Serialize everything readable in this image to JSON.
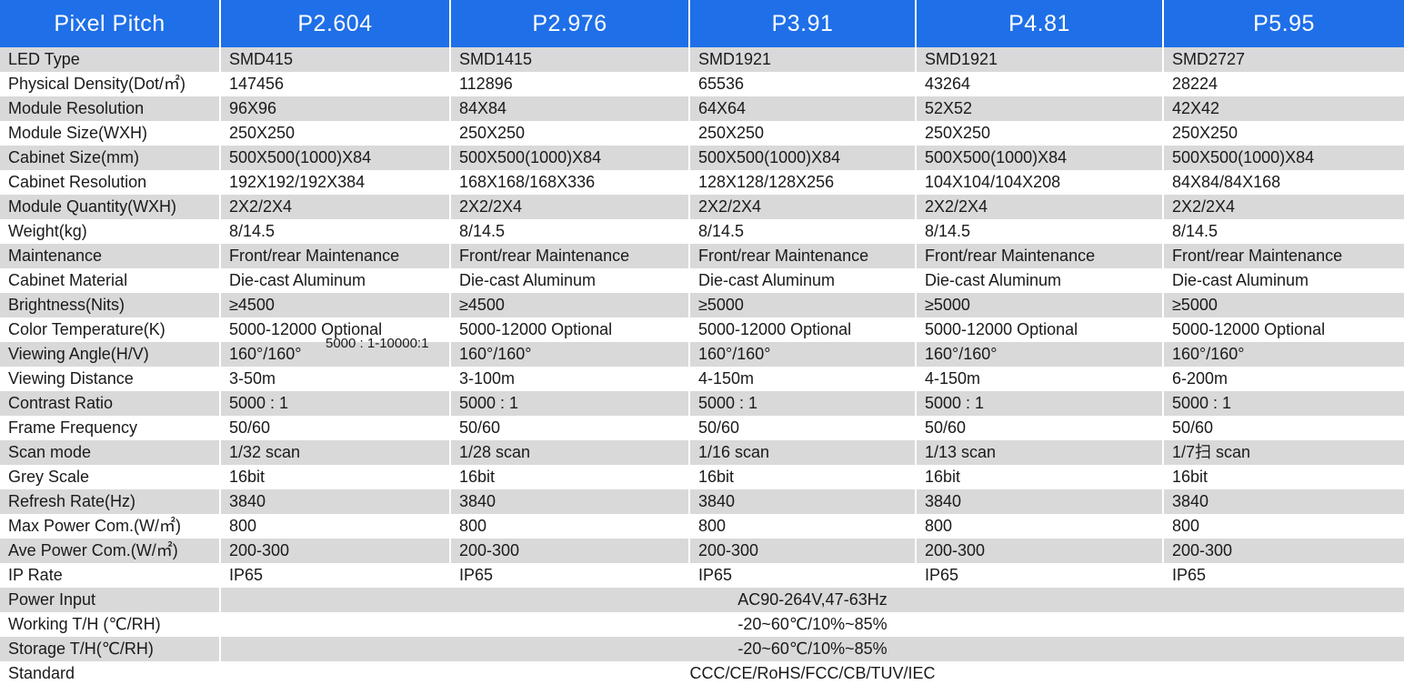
{
  "header": {
    "label": "Pixel Pitch",
    "models": [
      "P2.604",
      "P2.976",
      "P3.91",
      "P4.81",
      "P5.95"
    ]
  },
  "rows": [
    {
      "label": "LED Type",
      "values": [
        "SMD415",
        "SMD1415",
        "SMD1921",
        "SMD1921",
        "SMD2727"
      ]
    },
    {
      "label": "Physical Density(Dot/㎡)",
      "values": [
        "147456",
        "112896",
        "65536",
        "43264",
        "28224"
      ]
    },
    {
      "label": "Module Resolution",
      "values": [
        "96X96",
        "84X84",
        "64X64",
        "52X52",
        "42X42"
      ]
    },
    {
      "label": "Module Size(WXH)",
      "values": [
        "250X250",
        "250X250",
        "250X250",
        "250X250",
        "250X250"
      ]
    },
    {
      "label": "Cabinet Size(mm)",
      "values": [
        "500X500(1000)X84",
        "500X500(1000)X84",
        "500X500(1000)X84",
        "500X500(1000)X84",
        "500X500(1000)X84"
      ]
    },
    {
      "label": "Cabinet Resolution",
      "values": [
        "192X192/192X384",
        "168X168/168X336",
        "128X128/128X256",
        "104X104/104X208",
        "84X84/84X168"
      ]
    },
    {
      "label": "Module Quantity(WXH)",
      "values": [
        "2X2/2X4",
        "2X2/2X4",
        "2X2/2X4",
        "2X2/2X4",
        "2X2/2X4"
      ]
    },
    {
      "label": "Weight(kg)",
      "values": [
        "8/14.5",
        "8/14.5",
        "8/14.5",
        "8/14.5",
        "8/14.5"
      ]
    },
    {
      "label": "Maintenance",
      "values": [
        "Front/rear Maintenance",
        "Front/rear Maintenance",
        "Front/rear Maintenance",
        "Front/rear Maintenance",
        "Front/rear Maintenance"
      ]
    },
    {
      "label": "Cabinet Material",
      "values": [
        "Die-cast Aluminum",
        "Die-cast Aluminum",
        "Die-cast Aluminum",
        "Die-cast Aluminum",
        "Die-cast Aluminum"
      ]
    },
    {
      "label": "Brightness(Nits)",
      "values": [
        "≥4500",
        "≥4500",
        "≥5000",
        "≥5000",
        "≥5000"
      ]
    },
    {
      "label": "Color Temperature(K)",
      "values": [
        "5000-12000 Optional",
        "5000-12000 Optional",
        "5000-12000 Optional",
        "5000-12000 Optional",
        "5000-12000 Optional"
      ]
    },
    {
      "label": "Viewing Angle(H/V)",
      "values": [
        "160°/160°",
        "160°/160°",
        "160°/160°",
        "160°/160°",
        "160°/160°"
      ]
    },
    {
      "label": "Viewing Distance",
      "values": [
        "3-50m",
        "3-100m",
        "4-150m",
        "4-150m",
        "6-200m"
      ]
    },
    {
      "label": "Contrast Ratio",
      "values": [
        "5000 : 1",
        "5000 : 1",
        "5000 : 1",
        "5000 : 1",
        "5000 : 1"
      ]
    },
    {
      "label": "Frame Frequency",
      "values": [
        "50/60",
        "50/60",
        "50/60",
        "50/60",
        "50/60"
      ]
    },
    {
      "label": "Scan mode",
      "values": [
        "1/32 scan",
        "1/28 scan",
        "1/16 scan",
        "1/13 scan",
        "1/7扫 scan"
      ]
    },
    {
      "label": "Grey Scale",
      "values": [
        "16bit",
        "16bit",
        "16bit",
        "16bit",
        "16bit"
      ]
    },
    {
      "label": "Refresh Rate(Hz)",
      "values": [
        "3840",
        "3840",
        "3840",
        "3840",
        "3840"
      ]
    },
    {
      "label": "Max Power Com.(W/㎡)",
      "values": [
        "800",
        "800",
        "800",
        "800",
        "800"
      ]
    },
    {
      "label": "Ave Power Com.(W/㎡)",
      "values": [
        "200-300",
        "200-300",
        "200-300",
        "200-300",
        "200-300"
      ]
    },
    {
      "label": "IP Rate",
      "values": [
        "IP65",
        "IP65",
        "IP65",
        "IP65",
        "IP65"
      ]
    }
  ],
  "span_rows": [
    {
      "label": "Power Input",
      "value": "AC90-264V,47-63Hz"
    },
    {
      "label": "Working T/H (℃/RH)",
      "value": "-20~60℃/10%~85%"
    },
    {
      "label": "Storage T/H(℃/RH)",
      "value": "-20~60℃/10%~85%"
    },
    {
      "label": "Standard",
      "value": "CCC/CE/RoHS/FCC/CB/TUV/IEC"
    }
  ],
  "overlap_text": "5000 : 1-10000:1",
  "colors": {
    "header_bg": "#1f6fe8",
    "header_text": "#ffffff",
    "row_stripe": "#d9d9d9",
    "row_plain": "#ffffff"
  }
}
